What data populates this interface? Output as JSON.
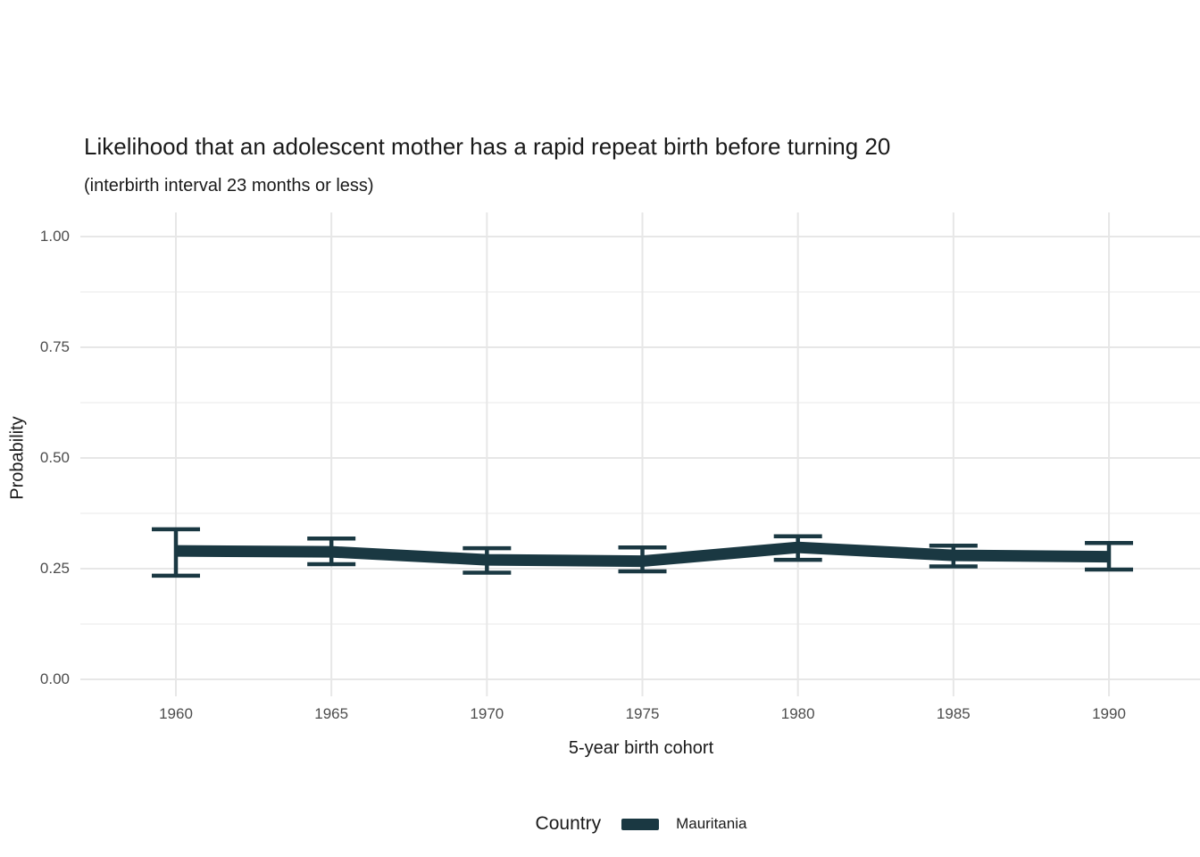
{
  "title": "Likelihood that an adolescent mother has a rapid repeat birth before turning 20",
  "subtitle": "(interbirth interval 23 months or less)",
  "chart_data": {
    "type": "line",
    "x": [
      1960,
      1965,
      1970,
      1975,
      1980,
      1985,
      1990
    ],
    "x_tick_labels": [
      "1960",
      "1965",
      "1970",
      "1975",
      "1980",
      "1985",
      "1990"
    ],
    "series": [
      {
        "name": "Mauritania",
        "color": "#1a3842",
        "values": [
          0.29,
          0.288,
          0.27,
          0.267,
          0.298,
          0.28,
          0.277
        ],
        "ci_low": [
          0.234,
          0.26,
          0.241,
          0.244,
          0.27,
          0.255,
          0.248
        ],
        "ci_high": [
          0.339,
          0.318,
          0.296,
          0.298,
          0.323,
          0.302,
          0.308
        ],
        "error_bars": true
      }
    ],
    "xlabel": "5-year birth cohort",
    "ylabel": "Probability",
    "ylim": [
      0,
      1
    ],
    "y_ticks": [
      0,
      0.25,
      0.5,
      0.75,
      1.0
    ],
    "y_tick_labels": [
      "0.00",
      "0.25",
      "0.50",
      "0.75",
      "1.00"
    ],
    "y_minor_ticks": [
      0.125,
      0.375,
      0.625,
      0.875
    ],
    "grid": "horizontal major+minor, vertical major only",
    "legend": {
      "title": "Country",
      "position": "bottom",
      "entries": [
        {
          "label": "Mauritania",
          "color": "#1a3842"
        }
      ]
    }
  },
  "colors": {
    "background": "#ffffff",
    "line": "#1a3842",
    "grid_major": "#e7e7e7",
    "grid_minor": "#f0f0f0",
    "axis_text": "#4d4d4d",
    "title_text": "#1a1a1a"
  }
}
